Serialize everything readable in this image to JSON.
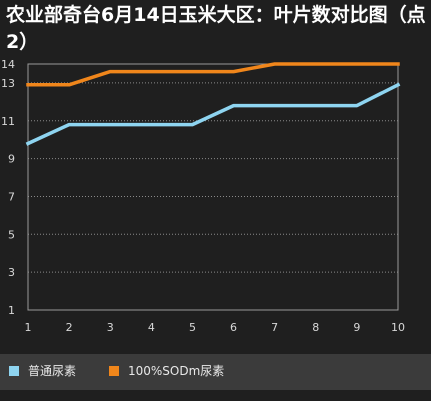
{
  "title": "农业部奇台6月14日玉米大区：叶片数对比图（点2）",
  "chart_data": {
    "type": "line",
    "title": "农业部奇台6月14日玉米大区：叶片数对比图（点2）",
    "x": [
      1,
      2,
      3,
      4,
      5,
      6,
      7,
      8,
      9,
      10
    ],
    "x_ticks": [
      "1",
      "2",
      "3",
      "4",
      "5",
      "6",
      "7",
      "8",
      "9",
      "10"
    ],
    "y_ticks": [
      "1",
      "3",
      "5",
      "7",
      "9",
      "11",
      "13",
      "14"
    ],
    "ylim": [
      1,
      14
    ],
    "grid": "horizontal-dotted",
    "legend_position": "bottom",
    "series": [
      {
        "name": "普通尿素",
        "color": "#8ed4f0",
        "values": [
          9.8,
          10.8,
          10.8,
          10.8,
          10.8,
          11.8,
          11.8,
          11.8,
          11.8,
          12.9
        ]
      },
      {
        "name": "100%SODm尿素",
        "color": "#f0861b",
        "values": [
          12.9,
          12.9,
          13.6,
          13.6,
          13.6,
          13.6,
          14,
          14,
          14,
          14
        ]
      }
    ]
  }
}
